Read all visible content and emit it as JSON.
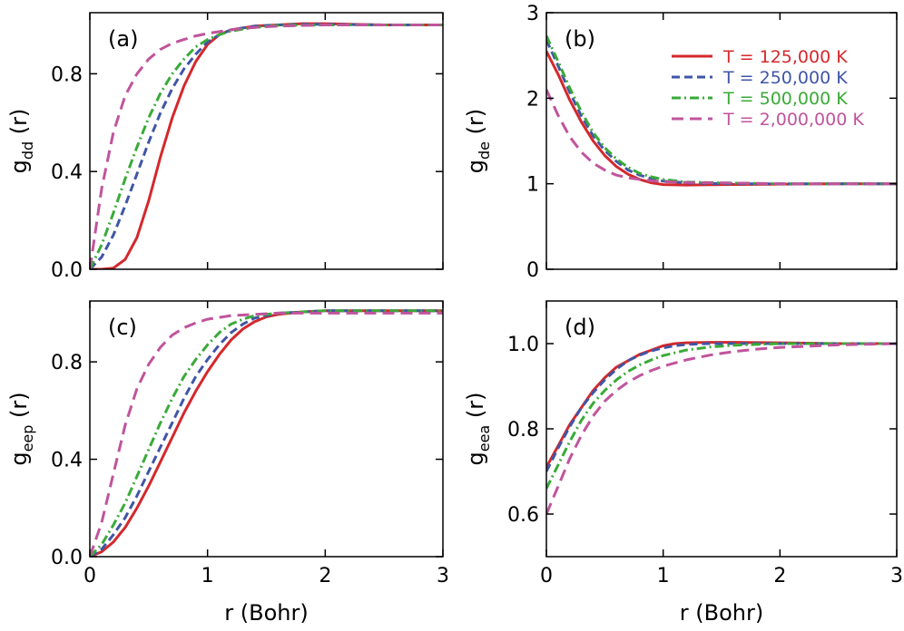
{
  "series_styles": [
    {
      "name": "T = 125,000 K",
      "color": "#d4282c",
      "dash": "none"
    },
    {
      "name": "T = 250,000 K",
      "color": "#3f56a6",
      "dash": "9 5"
    },
    {
      "name": "T = 500,000 K",
      "color": "#3aaa38",
      "dash": "10 4 2 4"
    },
    {
      "name": "T = 2,000,000 K",
      "color": "#c0549c",
      "dash": "13 7"
    }
  ],
  "chart_data": [
    {
      "type": "line",
      "panel": "(a)",
      "xlabel": "r (Bohr)",
      "ylabel": {
        "main": "g",
        "sub": "dd",
        "suffix": "(r)"
      },
      "xlim": [
        0,
        3
      ],
      "ylim": [
        0,
        1.05
      ],
      "xticks": [
        0,
        1,
        2,
        3
      ],
      "xtick_labels": [
        "",
        "",
        "",
        ""
      ],
      "yticks": [
        0,
        0.4,
        0.8
      ],
      "ytick_labels": [
        "0.0",
        "0.4",
        "0.8"
      ],
      "series": [
        {
          "name": "T = 125,000 K",
          "x": [
            0,
            0.1,
            0.2,
            0.3,
            0.4,
            0.5,
            0.6,
            0.7,
            0.8,
            0.9,
            1.0,
            1.1,
            1.2,
            1.4,
            1.6,
            1.8,
            2.0,
            2.2,
            2.5,
            3.0
          ],
          "y": [
            0,
            0,
            0.005,
            0.04,
            0.13,
            0.28,
            0.46,
            0.62,
            0.75,
            0.85,
            0.92,
            0.96,
            0.98,
            0.995,
            1.0,
            1.005,
            1.005,
            1.003,
            1.0,
            1.0
          ]
        },
        {
          "name": "T = 250,000 K",
          "x": [
            0,
            0.1,
            0.2,
            0.3,
            0.4,
            0.5,
            0.6,
            0.7,
            0.8,
            0.9,
            1.0,
            1.1,
            1.2,
            1.4,
            1.6,
            1.8,
            2.0,
            2.5,
            3.0
          ],
          "y": [
            0,
            0.05,
            0.14,
            0.26,
            0.39,
            0.52,
            0.64,
            0.74,
            0.82,
            0.88,
            0.93,
            0.96,
            0.98,
            0.995,
            1.0,
            1.002,
            1.002,
            1.0,
            1.0
          ]
        },
        {
          "name": "T = 500,000 K",
          "x": [
            0,
            0.1,
            0.2,
            0.3,
            0.4,
            0.5,
            0.6,
            0.7,
            0.8,
            0.9,
            1.0,
            1.1,
            1.2,
            1.4,
            1.6,
            2.0,
            2.5,
            3.0
          ],
          "y": [
            0,
            0.1,
            0.23,
            0.37,
            0.5,
            0.62,
            0.72,
            0.8,
            0.86,
            0.91,
            0.94,
            0.96,
            0.975,
            0.99,
            0.998,
            1.0,
            1.0,
            1.0
          ]
        },
        {
          "name": "T = 2,000,000 K",
          "x": [
            0,
            0.1,
            0.2,
            0.3,
            0.4,
            0.5,
            0.6,
            0.7,
            0.8,
            0.9,
            1.0,
            1.2,
            1.4,
            1.6,
            2.0,
            2.5,
            3.0
          ],
          "y": [
            0,
            0.33,
            0.56,
            0.71,
            0.8,
            0.86,
            0.9,
            0.925,
            0.94,
            0.955,
            0.965,
            0.98,
            0.99,
            0.995,
            1.0,
            1.0,
            1.0
          ]
        }
      ]
    },
    {
      "type": "line",
      "panel": "(b)",
      "xlabel": "r (Bohr)",
      "ylabel": {
        "main": "g",
        "sub": "de",
        "suffix": "(r)"
      },
      "xlim": [
        0,
        3
      ],
      "ylim": [
        0,
        3
      ],
      "xticks": [
        0,
        1,
        2,
        3
      ],
      "xtick_labels": [
        "",
        "",
        "",
        ""
      ],
      "yticks": [
        0,
        1,
        2,
        3
      ],
      "ytick_labels": [
        "0",
        "1",
        "2",
        "3"
      ],
      "legend": {
        "location": "top-right"
      },
      "series": [
        {
          "name": "T = 125,000 K",
          "x": [
            0,
            0.1,
            0.2,
            0.3,
            0.4,
            0.5,
            0.6,
            0.7,
            0.8,
            0.9,
            1.0,
            1.2,
            1.5,
            2.0,
            2.5,
            3.0
          ],
          "y": [
            2.55,
            2.28,
            1.98,
            1.72,
            1.5,
            1.33,
            1.2,
            1.11,
            1.05,
            1.01,
            0.99,
            0.985,
            0.99,
            0.995,
            1.0,
            1.0
          ]
        },
        {
          "name": "T = 250,000 K",
          "x": [
            0,
            0.1,
            0.2,
            0.3,
            0.4,
            0.5,
            0.6,
            0.7,
            0.8,
            0.9,
            1.0,
            1.2,
            1.5,
            2.0,
            2.5,
            3.0
          ],
          "y": [
            2.68,
            2.38,
            2.07,
            1.79,
            1.56,
            1.39,
            1.26,
            1.16,
            1.1,
            1.06,
            1.03,
            1.01,
            1.0,
            1.0,
            1.0,
            1.0
          ]
        },
        {
          "name": "T = 500,000 K",
          "x": [
            0,
            0.1,
            0.2,
            0.3,
            0.4,
            0.5,
            0.6,
            0.7,
            0.8,
            0.9,
            1.0,
            1.2,
            1.5,
            2.0,
            2.5,
            3.0
          ],
          "y": [
            2.73,
            2.43,
            2.12,
            1.84,
            1.6,
            1.42,
            1.29,
            1.19,
            1.12,
            1.08,
            1.05,
            1.02,
            1.01,
            1.0,
            1.0,
            1.0
          ]
        },
        {
          "name": "T = 2,000,000 K",
          "x": [
            0,
            0.1,
            0.2,
            0.3,
            0.4,
            0.5,
            0.6,
            0.7,
            0.8,
            0.9,
            1.0,
            1.2,
            1.5,
            2.0,
            2.5,
            3.0
          ],
          "y": [
            2.1,
            1.8,
            1.55,
            1.37,
            1.24,
            1.16,
            1.1,
            1.07,
            1.05,
            1.035,
            1.025,
            1.015,
            1.01,
            1.0,
            1.0,
            1.0
          ]
        }
      ]
    },
    {
      "type": "line",
      "panel": "(c)",
      "xlabel": "r (Bohr)",
      "ylabel": {
        "main": "g",
        "sub": "eep",
        "suffix": "(r)"
      },
      "xlim": [
        0,
        3
      ],
      "ylim": [
        0,
        1.05
      ],
      "xticks": [
        0,
        1,
        2,
        3
      ],
      "xtick_labels": [
        "0",
        "1",
        "2",
        "3"
      ],
      "yticks": [
        0,
        0.4,
        0.8
      ],
      "ytick_labels": [
        "0.0",
        "0.4",
        "0.8"
      ],
      "series": [
        {
          "name": "T = 125,000 K",
          "x": [
            0,
            0.1,
            0.2,
            0.3,
            0.4,
            0.5,
            0.6,
            0.7,
            0.8,
            0.9,
            1.0,
            1.1,
            1.2,
            1.3,
            1.4,
            1.5,
            1.6,
            1.7,
            1.8,
            2.0,
            2.5,
            3.0
          ],
          "y": [
            0,
            0.02,
            0.06,
            0.12,
            0.2,
            0.29,
            0.39,
            0.49,
            0.59,
            0.68,
            0.76,
            0.83,
            0.89,
            0.935,
            0.965,
            0.985,
            0.995,
            1.0,
            1.005,
            1.01,
            1.01,
            1.01
          ]
        },
        {
          "name": "T = 250,000 K",
          "x": [
            0,
            0.1,
            0.2,
            0.3,
            0.4,
            0.5,
            0.6,
            0.7,
            0.8,
            0.9,
            1.0,
            1.1,
            1.2,
            1.3,
            1.4,
            1.5,
            1.6,
            1.8,
            2.0,
            2.5,
            3.0
          ],
          "y": [
            0,
            0.03,
            0.09,
            0.16,
            0.25,
            0.35,
            0.45,
            0.55,
            0.65,
            0.74,
            0.81,
            0.87,
            0.92,
            0.955,
            0.98,
            0.99,
            1.0,
            1.005,
            1.01,
            1.01,
            1.01
          ]
        },
        {
          "name": "T = 500,000 K",
          "x": [
            0,
            0.1,
            0.2,
            0.3,
            0.4,
            0.5,
            0.6,
            0.7,
            0.8,
            0.9,
            1.0,
            1.1,
            1.2,
            1.3,
            1.4,
            1.6,
            1.8,
            2.0,
            2.5,
            3.0
          ],
          "y": [
            0,
            0.05,
            0.13,
            0.22,
            0.33,
            0.44,
            0.55,
            0.65,
            0.74,
            0.81,
            0.87,
            0.92,
            0.955,
            0.975,
            0.99,
            1.0,
            1.005,
            1.01,
            1.01,
            1.01
          ]
        },
        {
          "name": "T = 2,000,000 K",
          "x": [
            0,
            0.1,
            0.2,
            0.3,
            0.4,
            0.5,
            0.6,
            0.7,
            0.8,
            0.9,
            1.0,
            1.2,
            1.4,
            1.6,
            1.8,
            2.0,
            2.5,
            3.0
          ],
          "y": [
            0,
            0.14,
            0.34,
            0.54,
            0.69,
            0.79,
            0.86,
            0.91,
            0.94,
            0.96,
            0.975,
            0.99,
            0.995,
            1.0,
            1.0,
            1.0,
            1.0,
            1.0
          ]
        }
      ]
    },
    {
      "type": "line",
      "panel": "(d)",
      "xlabel": "r (Bohr)",
      "ylabel": {
        "main": "g",
        "sub": "eea",
        "suffix": "(r)"
      },
      "xlim": [
        0,
        3
      ],
      "ylim": [
        0.5,
        1.1
      ],
      "xticks": [
        0,
        1,
        2,
        3
      ],
      "xtick_labels": [
        "0",
        "1",
        "2",
        "3"
      ],
      "yticks": [
        0.6,
        0.8,
        1.0
      ],
      "ytick_labels": [
        "0.6",
        "0.8",
        "1.0"
      ],
      "series": [
        {
          "name": "T = 125,000 K",
          "x": [
            0,
            0.1,
            0.2,
            0.3,
            0.4,
            0.5,
            0.6,
            0.7,
            0.8,
            0.9,
            1.0,
            1.1,
            1.2,
            1.4,
            1.6,
            2.0,
            2.5,
            3.0
          ],
          "y": [
            0.71,
            0.76,
            0.81,
            0.85,
            0.89,
            0.92,
            0.945,
            0.96,
            0.975,
            0.985,
            0.995,
            1.0,
            1.002,
            1.003,
            1.003,
            1.002,
            1.0,
            1.0
          ]
        },
        {
          "name": "T = 250,000 K",
          "x": [
            0,
            0.1,
            0.2,
            0.3,
            0.4,
            0.5,
            0.6,
            0.7,
            0.8,
            0.9,
            1.0,
            1.1,
            1.2,
            1.4,
            1.6,
            2.0,
            2.5,
            3.0
          ],
          "y": [
            0.7,
            0.755,
            0.805,
            0.85,
            0.885,
            0.915,
            0.94,
            0.96,
            0.973,
            0.983,
            0.99,
            0.995,
            0.998,
            1.0,
            1.0,
            1.0,
            1.0,
            1.0
          ]
        },
        {
          "name": "T = 500,000 K",
          "x": [
            0,
            0.1,
            0.2,
            0.3,
            0.4,
            0.5,
            0.6,
            0.7,
            0.8,
            0.9,
            1.0,
            1.2,
            1.4,
            1.6,
            1.8,
            2.0,
            2.5,
            3.0
          ],
          "y": [
            0.66,
            0.715,
            0.77,
            0.82,
            0.86,
            0.89,
            0.915,
            0.935,
            0.95,
            0.962,
            0.972,
            0.985,
            0.992,
            0.996,
            0.998,
            1.0,
            1.0,
            1.0
          ]
        },
        {
          "name": "T = 2,000,000 K",
          "x": [
            0,
            0.1,
            0.2,
            0.3,
            0.4,
            0.5,
            0.6,
            0.7,
            0.8,
            0.9,
            1.0,
            1.2,
            1.4,
            1.6,
            1.8,
            2.0,
            2.5,
            3.0
          ],
          "y": [
            0.6,
            0.665,
            0.73,
            0.785,
            0.83,
            0.865,
            0.89,
            0.91,
            0.925,
            0.937,
            0.947,
            0.962,
            0.973,
            0.981,
            0.987,
            0.991,
            0.997,
            1.0
          ]
        }
      ]
    }
  ]
}
